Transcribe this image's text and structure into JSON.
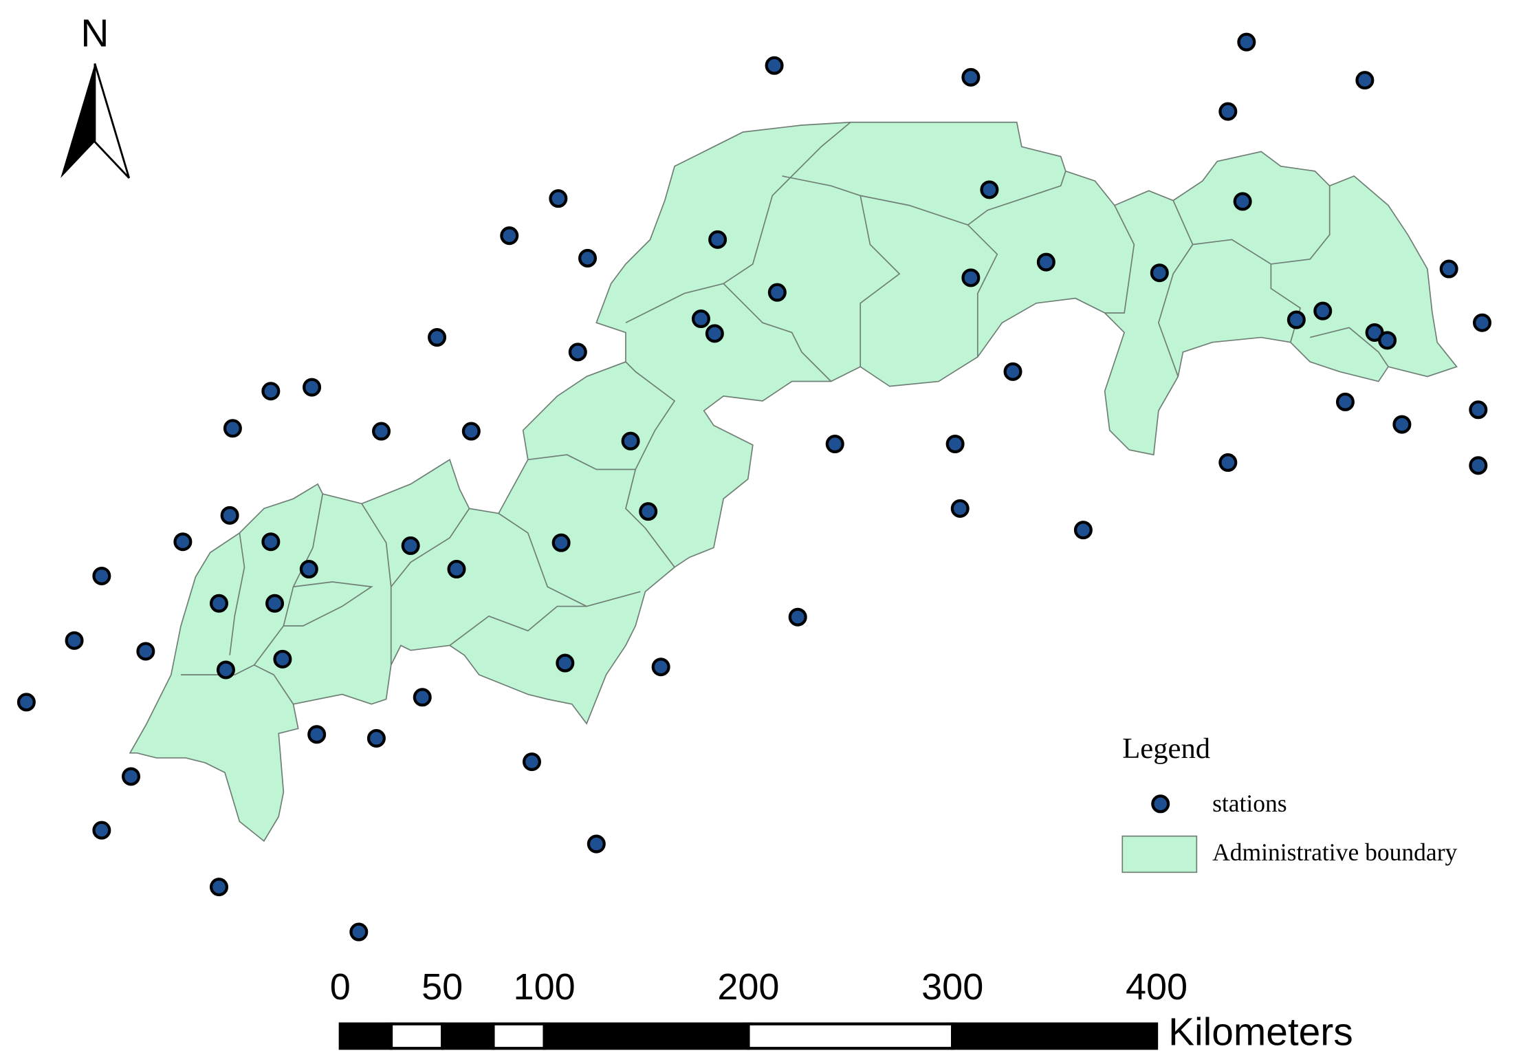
{
  "north_label": "N",
  "legend": {
    "title": "Legend",
    "items": [
      "stations",
      "Administrative boundary"
    ]
  },
  "scale_bar": {
    "ticks": [
      0,
      50,
      100,
      200,
      300,
      400
    ],
    "unit": "Kilometers"
  }
}
